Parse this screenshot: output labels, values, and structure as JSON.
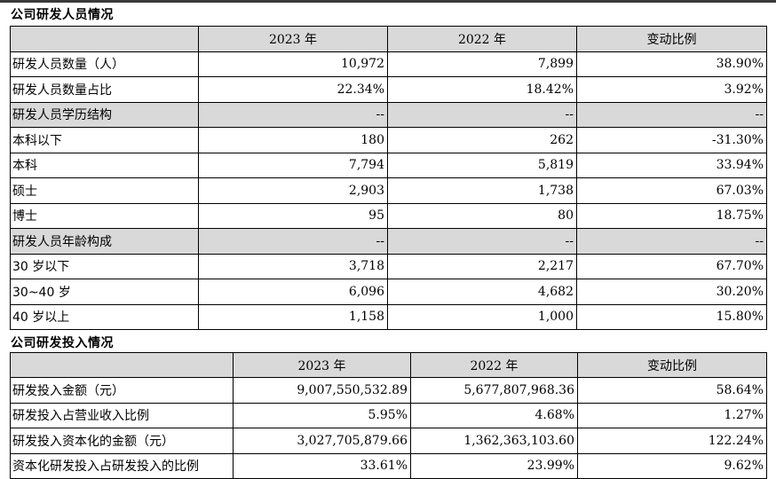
{
  "section1": {
    "title": "公司研发人员情况",
    "headers": [
      "",
      "2023 年",
      "2022 年",
      "变动比例"
    ],
    "rows": [
      {
        "label": "研发人员数量（人）",
        "y2023": "10,972",
        "y2022": "7,899",
        "change": "38.90%",
        "shaded": false
      },
      {
        "label": "研发人员数量占比",
        "y2023": "22.34%",
        "y2022": "18.42%",
        "change": "3.92%",
        "shaded": false
      },
      {
        "label": "研发人员学历结构",
        "y2023": "--",
        "y2022": "--",
        "change": "--",
        "shaded": true
      },
      {
        "label": "本科以下",
        "y2023": "180",
        "y2022": "262",
        "change": "-31.30%",
        "shaded": false
      },
      {
        "label": "本科",
        "y2023": "7,794",
        "y2022": "5,819",
        "change": "33.94%",
        "shaded": false
      },
      {
        "label": "硕士",
        "y2023": "2,903",
        "y2022": "1,738",
        "change": "67.03%",
        "shaded": false
      },
      {
        "label": "博士",
        "y2023": "95",
        "y2022": "80",
        "change": "18.75%",
        "shaded": false
      },
      {
        "label": "研发人员年龄构成",
        "y2023": "--",
        "y2022": "--",
        "change": "--",
        "shaded": true
      },
      {
        "label": "30 岁以下",
        "y2023": "3,718",
        "y2022": "2,217",
        "change": "67.70%",
        "shaded": false
      },
      {
        "label": "30~40 岁",
        "y2023": "6,096",
        "y2022": "4,682",
        "change": "30.20%",
        "shaded": false
      },
      {
        "label": "40 岁以上",
        "y2023": "1,158",
        "y2022": "1,000",
        "change": "15.80%",
        "shaded": false
      }
    ]
  },
  "section2": {
    "title": "公司研发投入情况",
    "headers": [
      "",
      "2023 年",
      "2022 年",
      "变动比例"
    ],
    "rows": [
      {
        "label": "研发投入金额（元）",
        "y2023": "9,007,550,532.89",
        "y2022": "5,677,807,968.36",
        "change": "58.64%"
      },
      {
        "label": "研发投入占营业收入比例",
        "y2023": "5.95%",
        "y2022": "4.68%",
        "change": "1.27%"
      },
      {
        "label": "研发投入资本化的金额（元）",
        "y2023": "3,027,705,879.66",
        "y2022": "1,362,363,103.60",
        "change": "122.24%"
      },
      {
        "label": "资本化研发投入占研发投入的比例",
        "y2023": "33.61%",
        "y2022": "23.99%",
        "change": "9.62%"
      }
    ]
  }
}
